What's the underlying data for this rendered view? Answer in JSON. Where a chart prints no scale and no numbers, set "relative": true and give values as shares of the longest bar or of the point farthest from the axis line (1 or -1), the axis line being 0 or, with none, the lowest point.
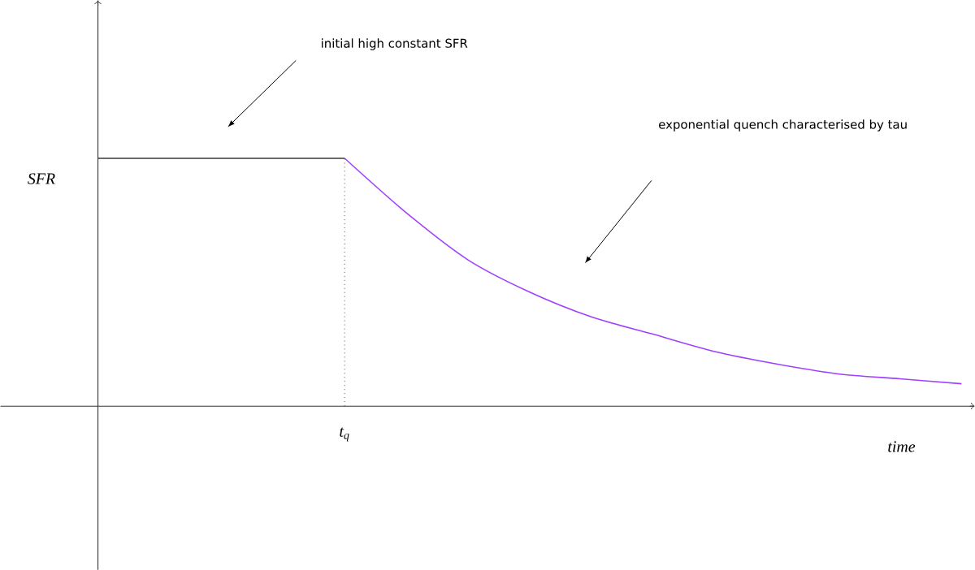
{
  "chart_data": {
    "type": "line",
    "relative": true,
    "xlabel": "time",
    "ylabel": "SFR",
    "categories": [
      null,
      null,
      null,
      null,
      null,
      null,
      null,
      null,
      null,
      null,
      null,
      null,
      null,
      null,
      null
    ],
    "series": [
      {
        "color": "#3a3a3a",
        "values": [
          1,
          1,
          1,
          1,
          1,
          null,
          null,
          null,
          null,
          null,
          null,
          null,
          null,
          null,
          null
        ]
      },
      {
        "color": "#a040ff",
        "values": [
          null,
          null,
          null,
          null,
          1,
          0.78,
          0.59,
          0.46,
          0.36,
          0.29,
          0.22,
          0.17,
          0.13,
          0.11,
          0.09
        ]
      }
    ],
    "annotations": [
      "initial high constant SFR",
      "exponential quench characterised by tau",
      "t$_{q}$"
    ],
    "marker": "none",
    "line_style": "solid"
  }
}
